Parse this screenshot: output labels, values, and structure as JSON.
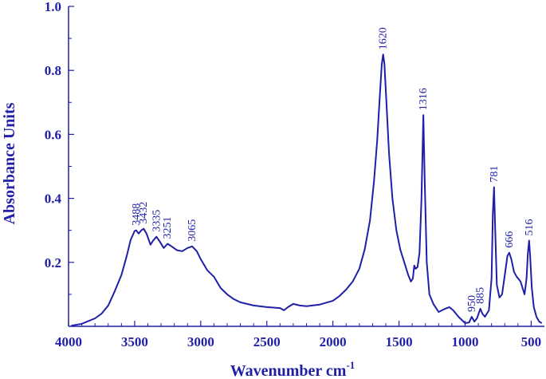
{
  "chart_data": {
    "type": "line",
    "color": "#1f1fa8",
    "xlabel": "Wavenumber cm",
    "xlabel_sup": "-1",
    "ylabel": "Absorbance Units",
    "xlim": [
      4000,
      400
    ],
    "ylim": [
      0,
      1.0
    ],
    "x_reversed": true,
    "grid": false,
    "x_ticks": [
      4000,
      3500,
      3000,
      2500,
      2000,
      1500,
      1000,
      500
    ],
    "x_tick_labels": [
      "4000",
      "3500",
      "3000",
      "2500",
      "2000",
      "1500",
      "1000",
      "500"
    ],
    "y_ticks": [
      0.2,
      0.4,
      0.6,
      0.8,
      1.0
    ],
    "y_tick_labels": [
      "0.2",
      "0.4",
      "0.6",
      "0.8",
      "1.0"
    ],
    "peak_labels": [
      {
        "label": "3488",
        "x": 3488,
        "y": 0.3
      },
      {
        "label": "3432",
        "x": 3432,
        "y": 0.305
      },
      {
        "label": "3335",
        "x": 3335,
        "y": 0.28
      },
      {
        "label": "3251",
        "x": 3251,
        "y": 0.258
      },
      {
        "label": "3065",
        "x": 3065,
        "y": 0.25
      },
      {
        "label": "1620",
        "x": 1620,
        "y": 0.85
      },
      {
        "label": "1316",
        "x": 1316,
        "y": 0.66
      },
      {
        "label": "950",
        "x": 950,
        "y": 0.03
      },
      {
        "label": "885",
        "x": 885,
        "y": 0.055
      },
      {
        "label": "781",
        "x": 781,
        "y": 0.435
      },
      {
        "label": "666",
        "x": 666,
        "y": 0.23
      },
      {
        "label": "516",
        "x": 516,
        "y": 0.268
      }
    ],
    "series": [
      {
        "points": [
          [
            3980,
            0.002
          ],
          [
            3900,
            0.008
          ],
          [
            3800,
            0.025
          ],
          [
            3750,
            0.04
          ],
          [
            3700,
            0.065
          ],
          [
            3650,
            0.11
          ],
          [
            3600,
            0.16
          ],
          [
            3560,
            0.22
          ],
          [
            3530,
            0.27
          ],
          [
            3500,
            0.298
          ],
          [
            3488,
            0.3
          ],
          [
            3470,
            0.29
          ],
          [
            3450,
            0.3
          ],
          [
            3432,
            0.305
          ],
          [
            3410,
            0.29
          ],
          [
            3380,
            0.255
          ],
          [
            3360,
            0.268
          ],
          [
            3335,
            0.28
          ],
          [
            3310,
            0.265
          ],
          [
            3280,
            0.245
          ],
          [
            3251,
            0.258
          ],
          [
            3220,
            0.25
          ],
          [
            3180,
            0.238
          ],
          [
            3140,
            0.235
          ],
          [
            3100,
            0.245
          ],
          [
            3065,
            0.25
          ],
          [
            3030,
            0.235
          ],
          [
            3000,
            0.21
          ],
          [
            2950,
            0.175
          ],
          [
            2900,
            0.155
          ],
          [
            2850,
            0.12
          ],
          [
            2800,
            0.1
          ],
          [
            2750,
            0.085
          ],
          [
            2700,
            0.075
          ],
          [
            2600,
            0.065
          ],
          [
            2500,
            0.06
          ],
          [
            2400,
            0.057
          ],
          [
            2370,
            0.05
          ],
          [
            2340,
            0.06
          ],
          [
            2300,
            0.07
          ],
          [
            2250,
            0.065
          ],
          [
            2200,
            0.063
          ],
          [
            2100,
            0.068
          ],
          [
            2000,
            0.08
          ],
          [
            1950,
            0.095
          ],
          [
            1900,
            0.115
          ],
          [
            1850,
            0.14
          ],
          [
            1800,
            0.18
          ],
          [
            1760,
            0.24
          ],
          [
            1720,
            0.33
          ],
          [
            1690,
            0.45
          ],
          [
            1665,
            0.58
          ],
          [
            1645,
            0.72
          ],
          [
            1630,
            0.82
          ],
          [
            1620,
            0.85
          ],
          [
            1610,
            0.82
          ],
          [
            1595,
            0.7
          ],
          [
            1575,
            0.54
          ],
          [
            1550,
            0.4
          ],
          [
            1520,
            0.3
          ],
          [
            1490,
            0.24
          ],
          [
            1460,
            0.2
          ],
          [
            1430,
            0.16
          ],
          [
            1410,
            0.14
          ],
          [
            1395,
            0.15
          ],
          [
            1385,
            0.19
          ],
          [
            1375,
            0.18
          ],
          [
            1360,
            0.185
          ],
          [
            1345,
            0.23
          ],
          [
            1330,
            0.4
          ],
          [
            1316,
            0.66
          ],
          [
            1305,
            0.45
          ],
          [
            1290,
            0.2
          ],
          [
            1270,
            0.1
          ],
          [
            1240,
            0.07
          ],
          [
            1200,
            0.045
          ],
          [
            1150,
            0.055
          ],
          [
            1120,
            0.06
          ],
          [
            1090,
            0.05
          ],
          [
            1050,
            0.03
          ],
          [
            1000,
            0.01
          ],
          [
            970,
            0.012
          ],
          [
            950,
            0.03
          ],
          [
            930,
            0.015
          ],
          [
            910,
            0.025
          ],
          [
            885,
            0.055
          ],
          [
            870,
            0.04
          ],
          [
            850,
            0.03
          ],
          [
            820,
            0.05
          ],
          [
            800,
            0.15
          ],
          [
            790,
            0.35
          ],
          [
            781,
            0.435
          ],
          [
            772,
            0.3
          ],
          [
            760,
            0.13
          ],
          [
            740,
            0.09
          ],
          [
            720,
            0.1
          ],
          [
            700,
            0.16
          ],
          [
            680,
            0.22
          ],
          [
            666,
            0.23
          ],
          [
            650,
            0.21
          ],
          [
            630,
            0.17
          ],
          [
            610,
            0.155
          ],
          [
            580,
            0.14
          ],
          [
            550,
            0.1
          ],
          [
            535,
            0.15
          ],
          [
            525,
            0.23
          ],
          [
            516,
            0.268
          ],
          [
            508,
            0.22
          ],
          [
            495,
            0.12
          ],
          [
            480,
            0.06
          ],
          [
            460,
            0.03
          ],
          [
            440,
            0.015
          ],
          [
            420,
            0.01
          ]
        ]
      }
    ]
  }
}
